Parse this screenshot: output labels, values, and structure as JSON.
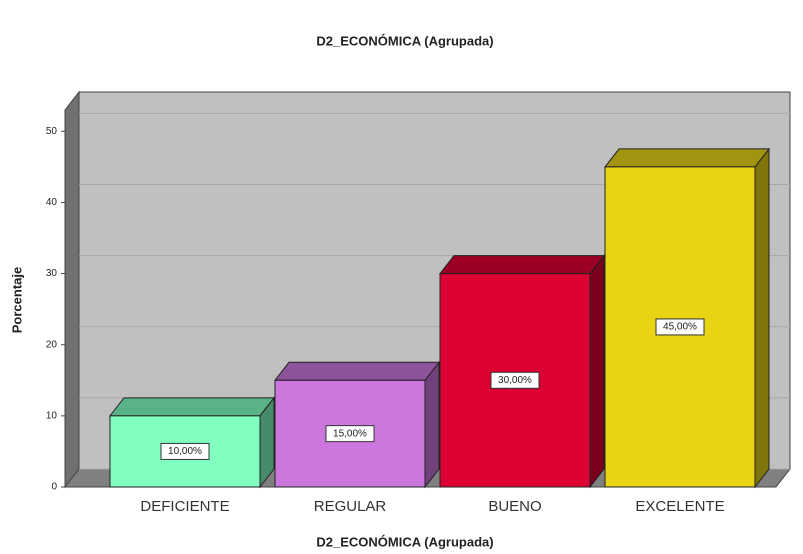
{
  "chart_data": {
    "type": "bar3d",
    "title": "D2_ECONÓMICA (Agrupada)",
    "x_label": "D2_ECONÓMICA (Agrupada)",
    "y_label": "Porcentaje",
    "categories": [
      "DEFICIENTE",
      "REGULAR",
      "BUENO",
      "EXCELENTE"
    ],
    "values": [
      10,
      15,
      30,
      45
    ],
    "value_labels": [
      "10,00%",
      "15,00%",
      "30,00%",
      "45,00%"
    ],
    "colors": [
      "#80ffc0",
      "#cc77dd",
      "#dd0033",
      "#e8d414"
    ],
    "ylim": [
      0,
      53
    ],
    "yticks": [
      0,
      10,
      20,
      30,
      40,
      50
    ],
    "grid": true
  }
}
